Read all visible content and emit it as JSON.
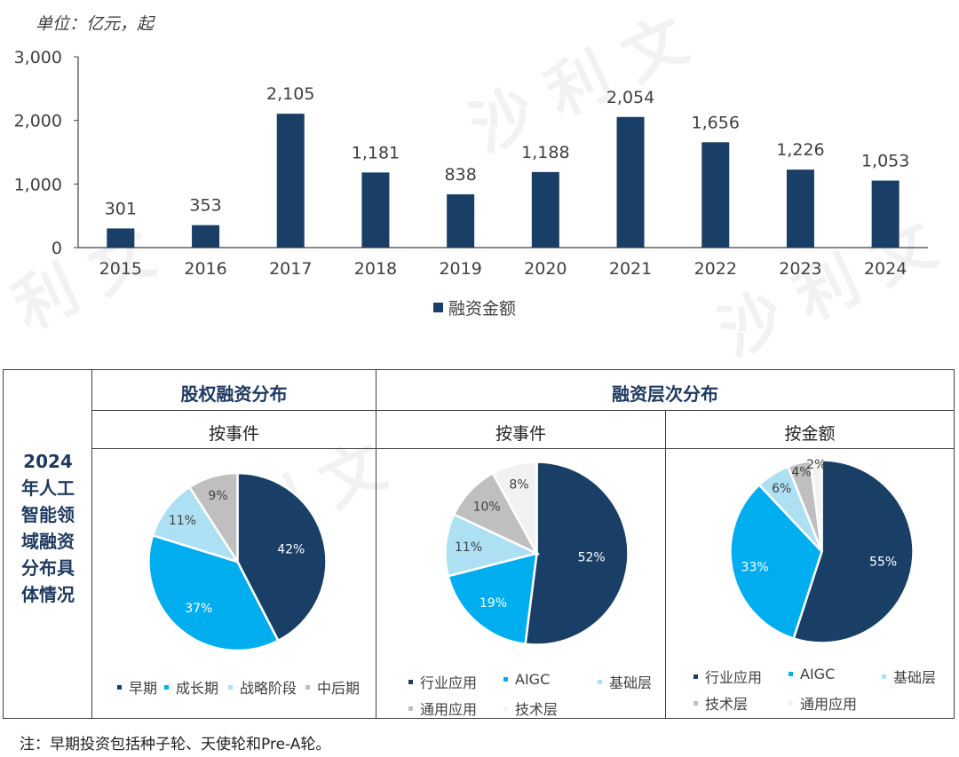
{
  "unit_label": "单位：亿元，起",
  "colors": {
    "navy": "#1a3f66",
    "cyan": "#00aeef",
    "light_blue": "#aee0f4",
    "gray": "#bfbfbf",
    "pale": "#f2f2f2",
    "header_text": "#1f3a5f"
  },
  "chart_data": [
    {
      "type": "bar",
      "categories": [
        "2015",
        "2016",
        "2017",
        "2018",
        "2019",
        "2020",
        "2021",
        "2022",
        "2023",
        "2024"
      ],
      "series": [
        {
          "name": "融资金额",
          "values": [
            301,
            353,
            2105,
            1181,
            838,
            1188,
            2054,
            1656,
            1226,
            1053
          ]
        }
      ],
      "data_labels": [
        "301",
        "353",
        "2,105",
        "1,181",
        "838",
        "1,188",
        "2,054",
        "1,656",
        "1,226",
        "1,053"
      ],
      "ylim": [
        0,
        3000
      ],
      "yticks": [
        0,
        1000,
        2000,
        3000
      ],
      "ytick_labels": [
        "0",
        "1,000",
        "2,000",
        "3,000"
      ],
      "grid": false,
      "legend": "bottom"
    },
    {
      "type": "pie",
      "title": "按事件",
      "labels": [
        "早期",
        "成长期",
        "战略阶段",
        "中后期"
      ],
      "values": [
        42,
        37,
        11,
        9
      ],
      "value_labels": [
        "42%",
        "37%",
        "11%",
        "9%"
      ],
      "legend": "bottom"
    },
    {
      "type": "pie",
      "title": "按事件",
      "labels": [
        "行业应用",
        "AIGC",
        "基础层",
        "通用应用",
        "技术层"
      ],
      "slices": [
        {
          "label": "行业应用",
          "value": 52,
          "value_label": "52%"
        },
        {
          "label": "AIGC",
          "value": 19,
          "value_label": "19%"
        },
        {
          "label": "基础层",
          "value": 11,
          "value_label": "11%"
        },
        {
          "label": "技术层",
          "value": 10,
          "value_label": "10%"
        },
        {
          "label": "通用应用",
          "value": 8,
          "value_label": "8%"
        }
      ],
      "legend": "bottom"
    },
    {
      "type": "pie",
      "title": "按金额",
      "labels": [
        "行业应用",
        "AIGC",
        "基础层",
        "技术层",
        "通用应用"
      ],
      "values": [
        55,
        33,
        6,
        4,
        2
      ],
      "value_labels": [
        "55%",
        "33%",
        "6%",
        "4%",
        "2%"
      ],
      "legend": "bottom"
    }
  ],
  "table": {
    "header_left": "股权融资分布",
    "header_right": "融资层次分布",
    "sub_left": "按事件",
    "sub_mid": "按事件",
    "sub_right": "按金额",
    "side_label_lines": [
      "2024",
      "年人工",
      "智能领",
      "域融资",
      "分布具",
      "体情况"
    ]
  },
  "footnote": "注：早期投资包括种子轮、天使轮和Pre-A轮。"
}
